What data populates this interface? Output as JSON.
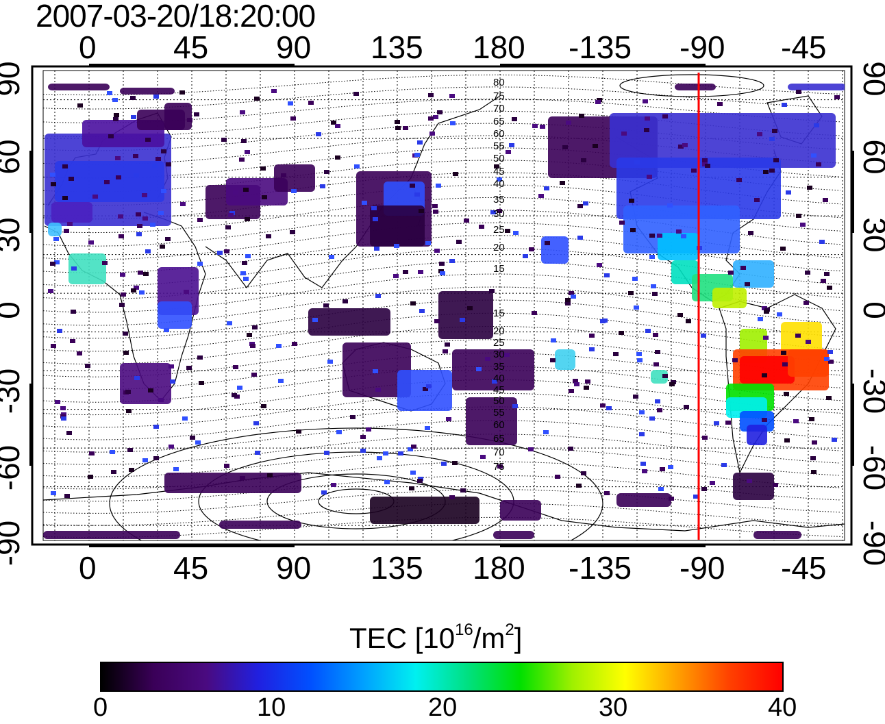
{
  "timestamp": "2007-03-20/18:20:00",
  "map": {
    "lon_ticks_top": [
      "0",
      "45",
      "90",
      "135",
      "180",
      "-135",
      "-90",
      "-45"
    ],
    "lon_ticks_bottom": [
      "0",
      "45",
      "90",
      "135",
      "180",
      "-135",
      "-90",
      "-45"
    ],
    "lat_ticks_left": [
      "90",
      "60",
      "30",
      "0",
      "-30",
      "-60",
      "-90"
    ],
    "lat_ticks_right": [
      "90",
      "60",
      "30",
      "0",
      "-30",
      "-60",
      "-90"
    ],
    "contour_labels": [
      "80",
      "75",
      "70",
      "65",
      "60",
      "55",
      "50",
      "45",
      "40",
      "35",
      "30",
      "25",
      "20",
      "15",
      "15",
      "20",
      "25",
      "30",
      "35",
      "40",
      "45",
      "50",
      "55",
      "60",
      "65",
      "70",
      "75"
    ],
    "marker_line": {
      "longitude": -93,
      "color": "#ff0000"
    }
  },
  "colorbar": {
    "title_main": "TEC  [10",
    "title_exp": "16",
    "title_mid": "/m",
    "title_exp2": "2",
    "title_end": "]",
    "ticks": [
      "0",
      "10",
      "20",
      "30",
      "40"
    ],
    "colors": [
      "#000000",
      "#3a0058",
      "#4a0a80",
      "#2020e0",
      "#0050ff",
      "#00a0ff",
      "#00f0f0",
      "#00e080",
      "#00e000",
      "#a0f000",
      "#ffff00",
      "#ffa000",
      "#ff4000",
      "#ff0000"
    ]
  },
  "colors": {
    "frame": "#000000",
    "grid": "#000000",
    "marker": "#ff0000"
  }
}
